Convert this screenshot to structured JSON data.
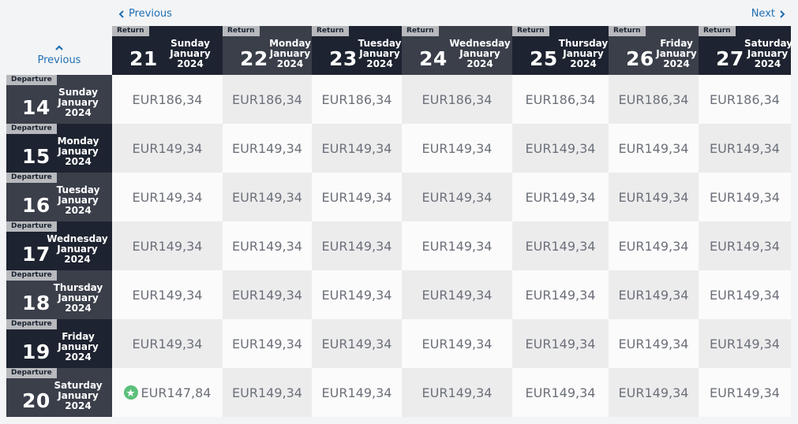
{
  "nav": {
    "previous_top": "Previous",
    "next_top": "Next",
    "previous_left": "Previous"
  },
  "return_label": "Return",
  "departure_label": "Departure",
  "columns": [
    {
      "day": "21",
      "weekday": "Sunday",
      "month": "January",
      "year": "2024"
    },
    {
      "day": "22",
      "weekday": "Monday",
      "month": "January",
      "year": "2024"
    },
    {
      "day": "23",
      "weekday": "Tuesday",
      "month": "January",
      "year": "2024"
    },
    {
      "day": "24",
      "weekday": "Wednesday",
      "month": "January",
      "year": "2024"
    },
    {
      "day": "25",
      "weekday": "Thursday",
      "month": "January",
      "year": "2024"
    },
    {
      "day": "26",
      "weekday": "Friday",
      "month": "January",
      "year": "2024"
    },
    {
      "day": "27",
      "weekday": "Saturday",
      "month": "January",
      "year": "2024"
    }
  ],
  "rows": [
    {
      "day": "14",
      "weekday": "Sunday",
      "month": "January",
      "year": "2024",
      "prices": [
        "EUR186,34",
        "EUR186,34",
        "EUR186,34",
        "EUR186,34",
        "EUR186,34",
        "EUR186,34",
        "EUR186,34"
      ]
    },
    {
      "day": "15",
      "weekday": "Monday",
      "month": "January",
      "year": "2024",
      "prices": [
        "EUR149,34",
        "EUR149,34",
        "EUR149,34",
        "EUR149,34",
        "EUR149,34",
        "EUR149,34",
        "EUR149,34"
      ]
    },
    {
      "day": "16",
      "weekday": "Tuesday",
      "month": "January",
      "year": "2024",
      "prices": [
        "EUR149,34",
        "EUR149,34",
        "EUR149,34",
        "EUR149,34",
        "EUR149,34",
        "EUR149,34",
        "EUR149,34"
      ]
    },
    {
      "day": "17",
      "weekday": "Wednesday",
      "month": "January",
      "year": "2024",
      "prices": [
        "EUR149,34",
        "EUR149,34",
        "EUR149,34",
        "EUR149,34",
        "EUR149,34",
        "EUR149,34",
        "EUR149,34"
      ]
    },
    {
      "day": "18",
      "weekday": "Thursday",
      "month": "January",
      "year": "2024",
      "prices": [
        "EUR149,34",
        "EUR149,34",
        "EUR149,34",
        "EUR149,34",
        "EUR149,34",
        "EUR149,34",
        "EUR149,34"
      ]
    },
    {
      "day": "19",
      "weekday": "Friday",
      "month": "January",
      "year": "2024",
      "prices": [
        "EUR149,34",
        "EUR149,34",
        "EUR149,34",
        "EUR149,34",
        "EUR149,34",
        "EUR149,34",
        "EUR149,34"
      ]
    },
    {
      "day": "20",
      "weekday": "Saturday",
      "month": "January",
      "year": "2024",
      "prices": [
        "EUR147,84",
        "EUR149,34",
        "EUR149,34",
        "EUR149,34",
        "EUR149,34",
        "EUR149,34",
        "EUR149,34"
      ]
    }
  ],
  "cheapest": {
    "row": 6,
    "col": 0,
    "icon": "star-icon",
    "color": "#5cc07a"
  }
}
